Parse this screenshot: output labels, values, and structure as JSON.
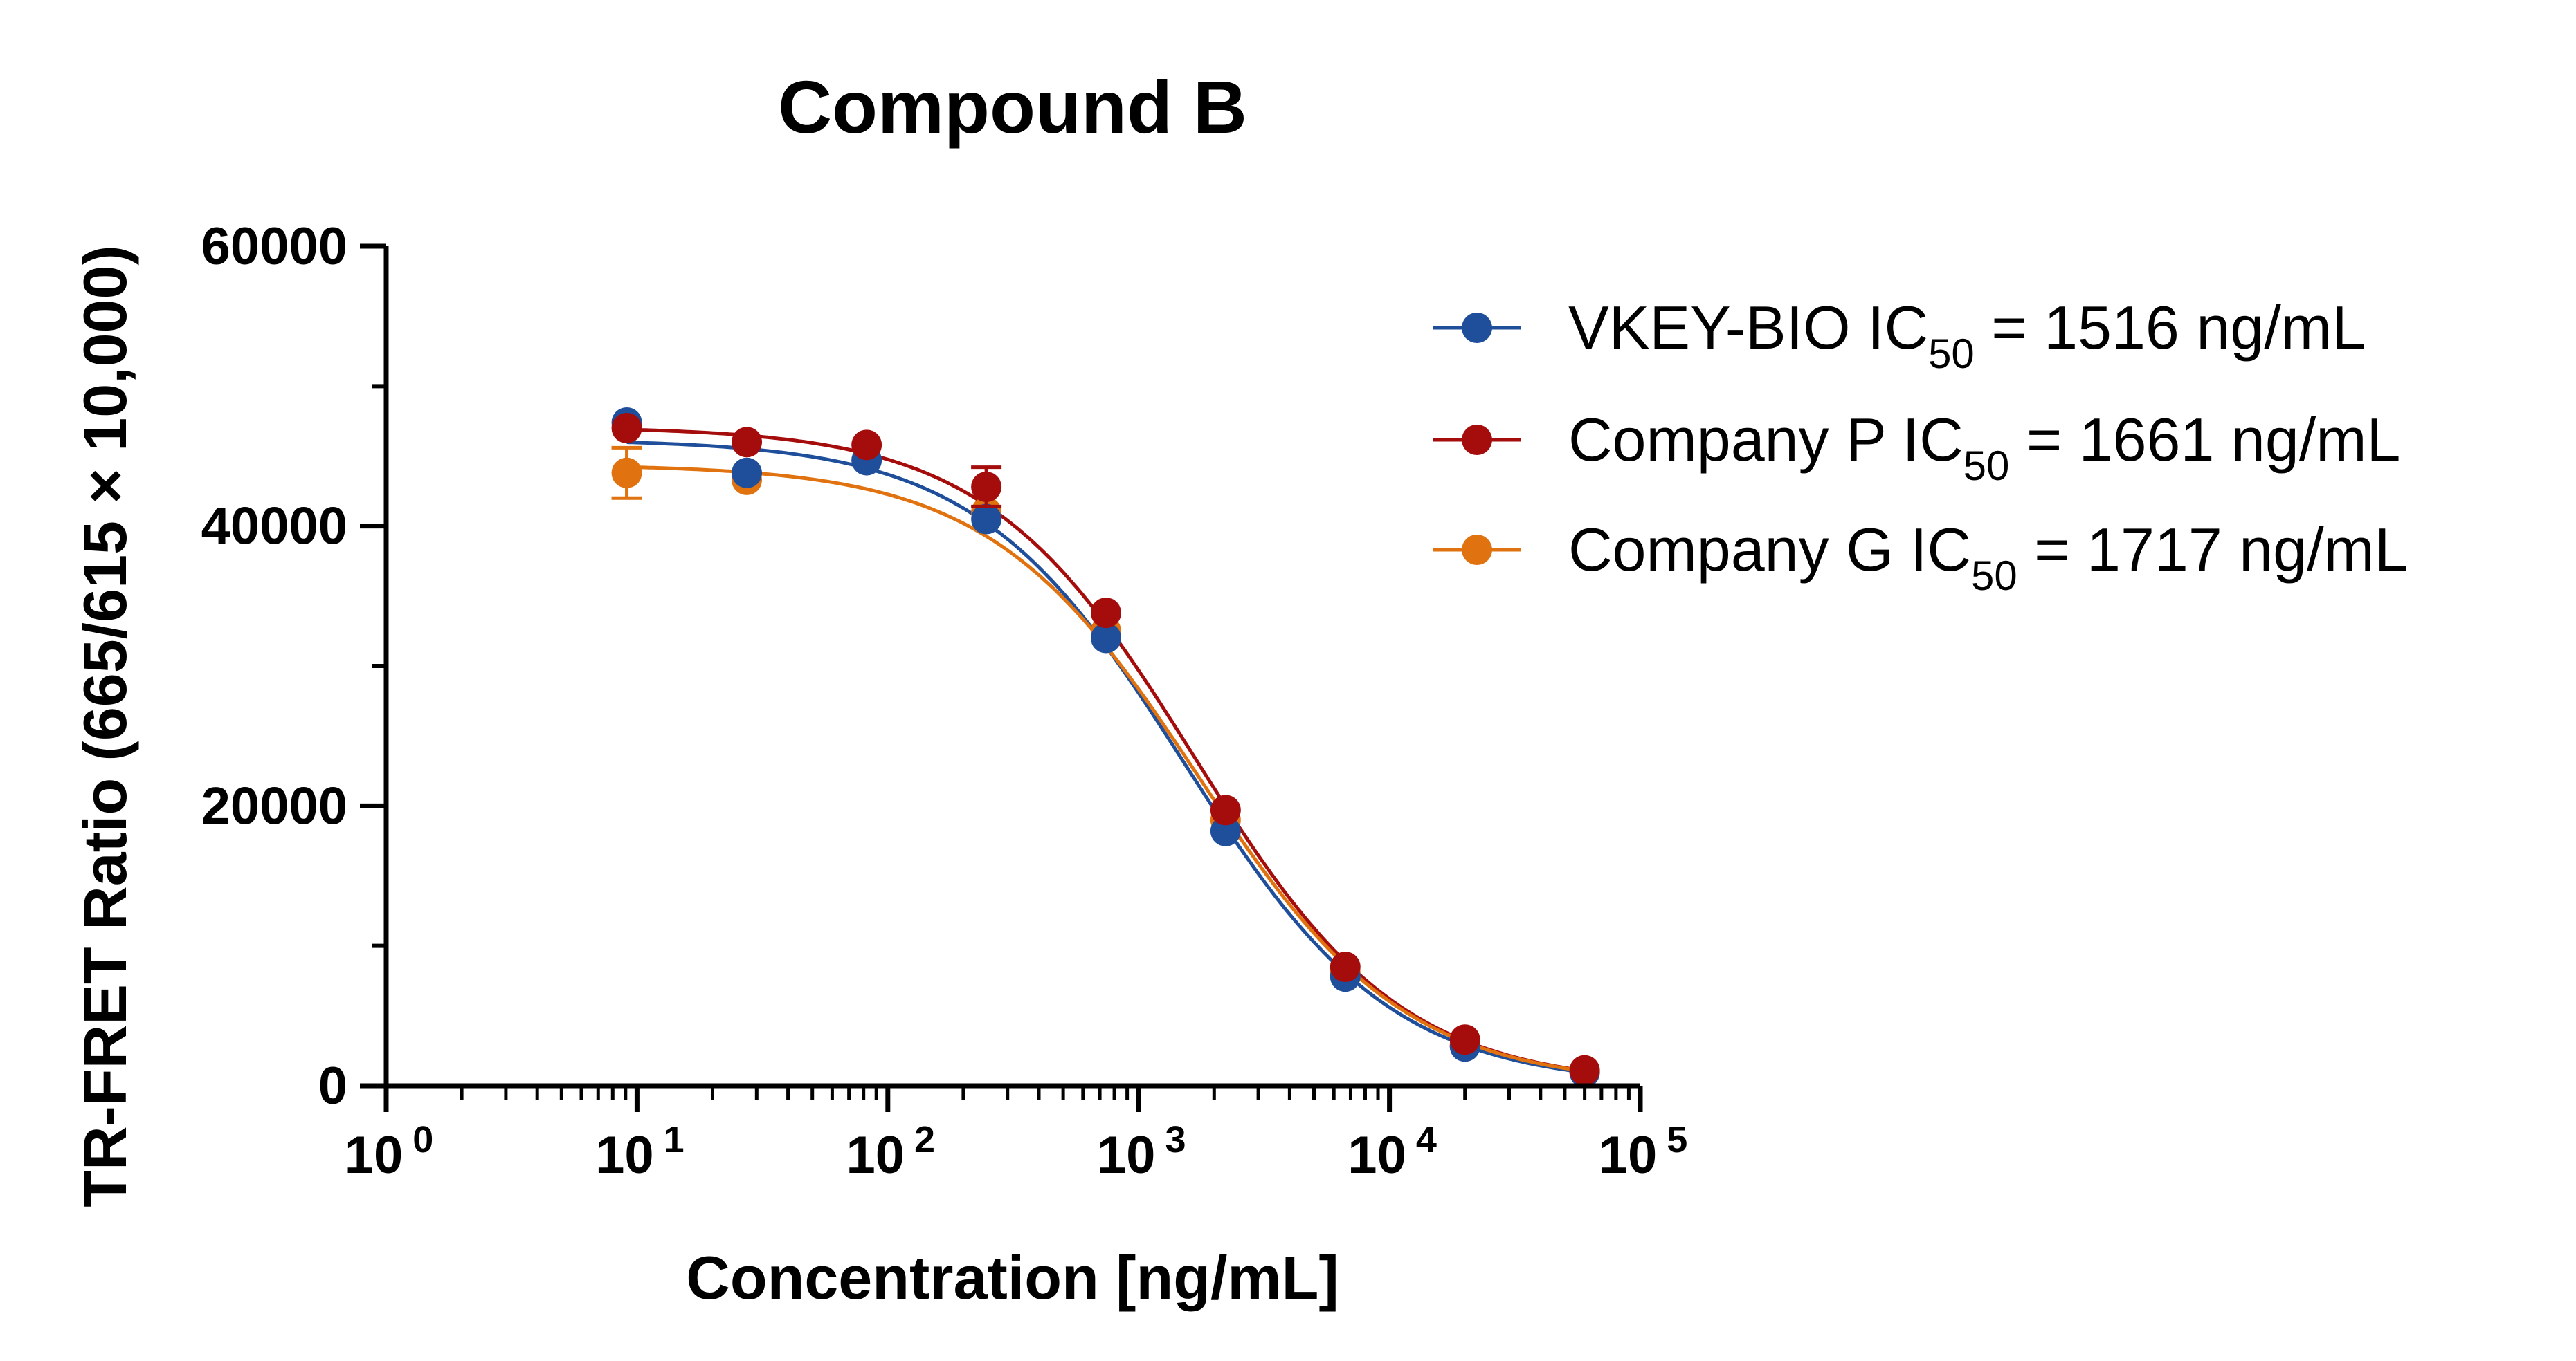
{
  "chart_data": {
    "type": "scatter",
    "title": "Compound B",
    "xlabel": "Concentration [ng/mL]",
    "ylabel": "TR-FRET Ratio (665/615 × 10,000)",
    "xscale": "log",
    "xlim": [
      1,
      100000
    ],
    "ylim": [
      0,
      60000
    ],
    "x_ticks": [
      {
        "base": "10",
        "exp": "0"
      },
      {
        "base": "10",
        "exp": "1"
      },
      {
        "base": "10",
        "exp": "2"
      },
      {
        "base": "10",
        "exp": "3"
      },
      {
        "base": "10",
        "exp": "4"
      },
      {
        "base": "10",
        "exp": "5"
      }
    ],
    "y_ticks": [
      "0",
      "20000",
      "40000",
      "60000"
    ],
    "legend_position": "right",
    "x": [
      9.1,
      27.4,
      82.3,
      247,
      741,
      2222,
      6667,
      20000,
      60000
    ],
    "series": [
      {
        "name": "VKEY-BIO IC50 = 1516 ng/mL",
        "legend": {
          "pre": "VKEY-BIO IC",
          "sub": "50",
          "post": " = 1516 ng/mL"
        },
        "color": "#1f4e9b",
        "values": [
          47400,
          43800,
          44700,
          40500,
          32000,
          18200,
          7800,
          2800,
          950
        ],
        "errors": [
          0,
          0,
          0,
          0,
          0,
          0,
          0,
          0,
          0
        ],
        "fit": {
          "top": 46200,
          "bottom": 0,
          "ic50": 1516,
          "hill": 1.05
        }
      },
      {
        "name": "Company P IC50 = 1661 ng/mL",
        "legend": {
          "pre": "Company P IC",
          "sub": "50",
          "post": " = 1661 ng/mL"
        },
        "color": "#a50d0d",
        "values": [
          47000,
          46000,
          45800,
          42800,
          33800,
          19700,
          8500,
          3300,
          1100
        ],
        "errors": [
          0,
          0,
          0,
          1400,
          0,
          0,
          0,
          0,
          0
        ],
        "fit": {
          "top": 47100,
          "bottom": 0,
          "ic50": 1661,
          "hill": 1.05
        }
      },
      {
        "name": "Company G IC50 = 1717 ng/mL",
        "legend": {
          "pre": "Company G IC",
          "sub": "50",
          "post": " = 1717 ng/mL"
        },
        "color": "#e0720f",
        "values": [
          43800,
          43300,
          0,
          41000,
          32500,
          19000,
          8100,
          2900,
          1000
        ],
        "errors": [
          1800,
          0,
          0,
          0,
          0,
          0,
          0,
          0,
          0
        ],
        "fit": {
          "top": 44400,
          "bottom": 0,
          "ic50": 1717,
          "hill": 1.05
        }
      }
    ]
  }
}
